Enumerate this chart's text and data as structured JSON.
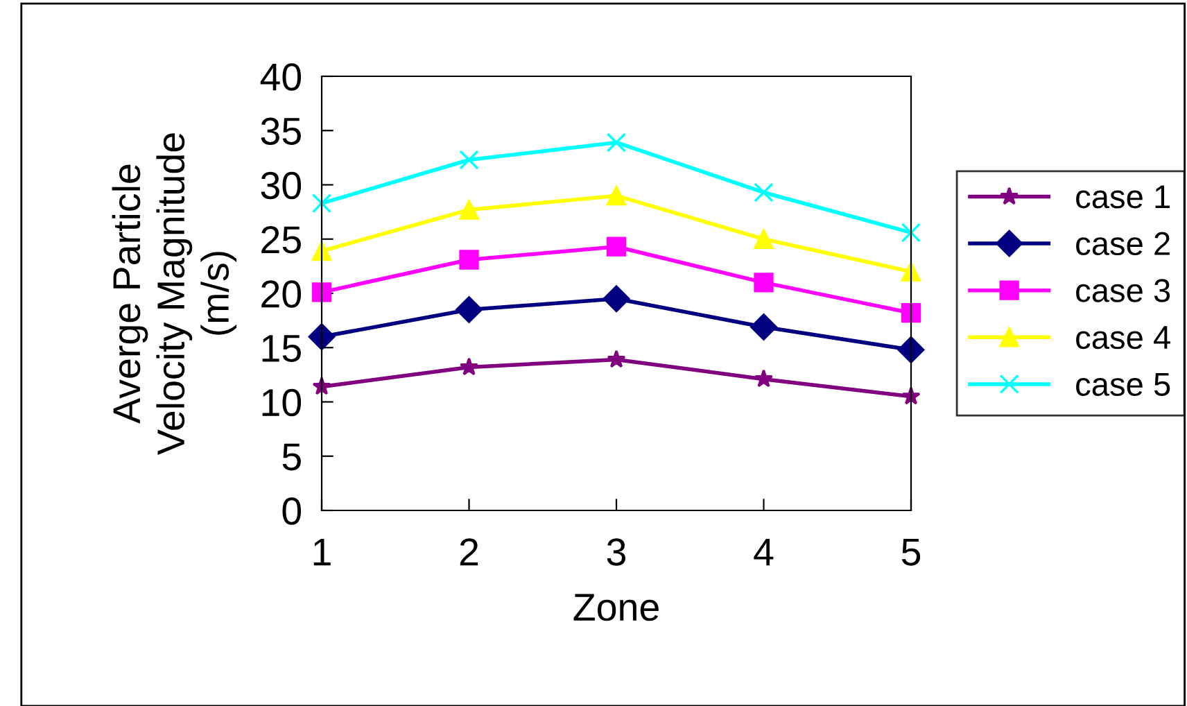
{
  "chart_data": {
    "type": "line",
    "xlabel": "Zone",
    "ylabel": "Averge Particle\nVelocity Magnitude\n(m/s)",
    "categories": [
      "1",
      "2",
      "3",
      "4",
      "5"
    ],
    "series": [
      {
        "name": "case 1",
        "color": "#800080",
        "marker": "star",
        "values": [
          11.4,
          13.2,
          13.9,
          12.1,
          10.5
        ]
      },
      {
        "name": "case 2",
        "color": "#000080",
        "marker": "diamond",
        "values": [
          16.0,
          18.5,
          19.5,
          16.9,
          14.8
        ]
      },
      {
        "name": "case 3",
        "color": "#ff00ff",
        "marker": "square",
        "values": [
          20.1,
          23.1,
          24.3,
          21.0,
          18.2
        ]
      },
      {
        "name": "case 4",
        "color": "#ffff00",
        "marker": "triangle",
        "values": [
          23.9,
          27.7,
          29.0,
          25.0,
          22.0
        ]
      },
      {
        "name": "case 5",
        "color": "#00ffff",
        "marker": "cross",
        "values": [
          28.3,
          32.3,
          33.9,
          29.3,
          25.6
        ]
      }
    ],
    "ylim": [
      0,
      40
    ],
    "yticks": [
      0,
      5,
      10,
      15,
      20,
      25,
      30,
      35,
      40
    ],
    "grid": false,
    "legend": "right",
    "line_style": "solid"
  }
}
